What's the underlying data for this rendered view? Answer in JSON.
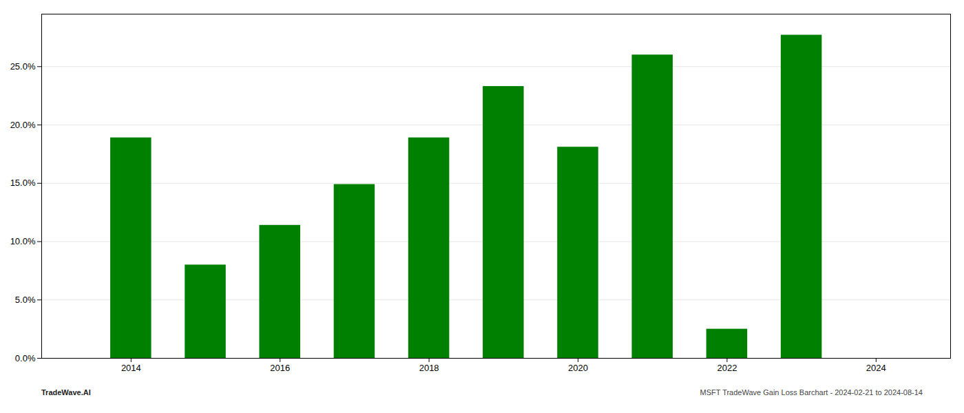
{
  "chart_data": {
    "type": "bar",
    "x": [
      2014,
      2015,
      2016,
      2017,
      2018,
      2019,
      2020,
      2021,
      2022,
      2023,
      2024
    ],
    "values": [
      0.189,
      0.08,
      0.114,
      0.149,
      0.189,
      0.233,
      0.181,
      0.26,
      0.025,
      0.277,
      null
    ],
    "color": "#008000",
    "xlim": [
      2012.8,
      2025.0
    ],
    "xticks": [
      2014,
      2016,
      2018,
      2020,
      2022,
      2024
    ],
    "ylim": [
      0,
      0.295
    ],
    "yticks": [
      {
        "value": 0.0,
        "label": "0.0%"
      },
      {
        "value": 0.05,
        "label": "5.0%"
      },
      {
        "value": 0.1,
        "label": "10.0%"
      },
      {
        "value": 0.15,
        "label": "15.0%"
      },
      {
        "value": 0.2,
        "label": "20.0%"
      },
      {
        "value": 0.25,
        "label": "25.0%"
      }
    ],
    "grid": "y",
    "annotations": [
      "TradeWave.AI",
      "MSFT TradeWave Gain Loss Barchart - 2024-02-21 to 2024-08-14"
    ]
  }
}
